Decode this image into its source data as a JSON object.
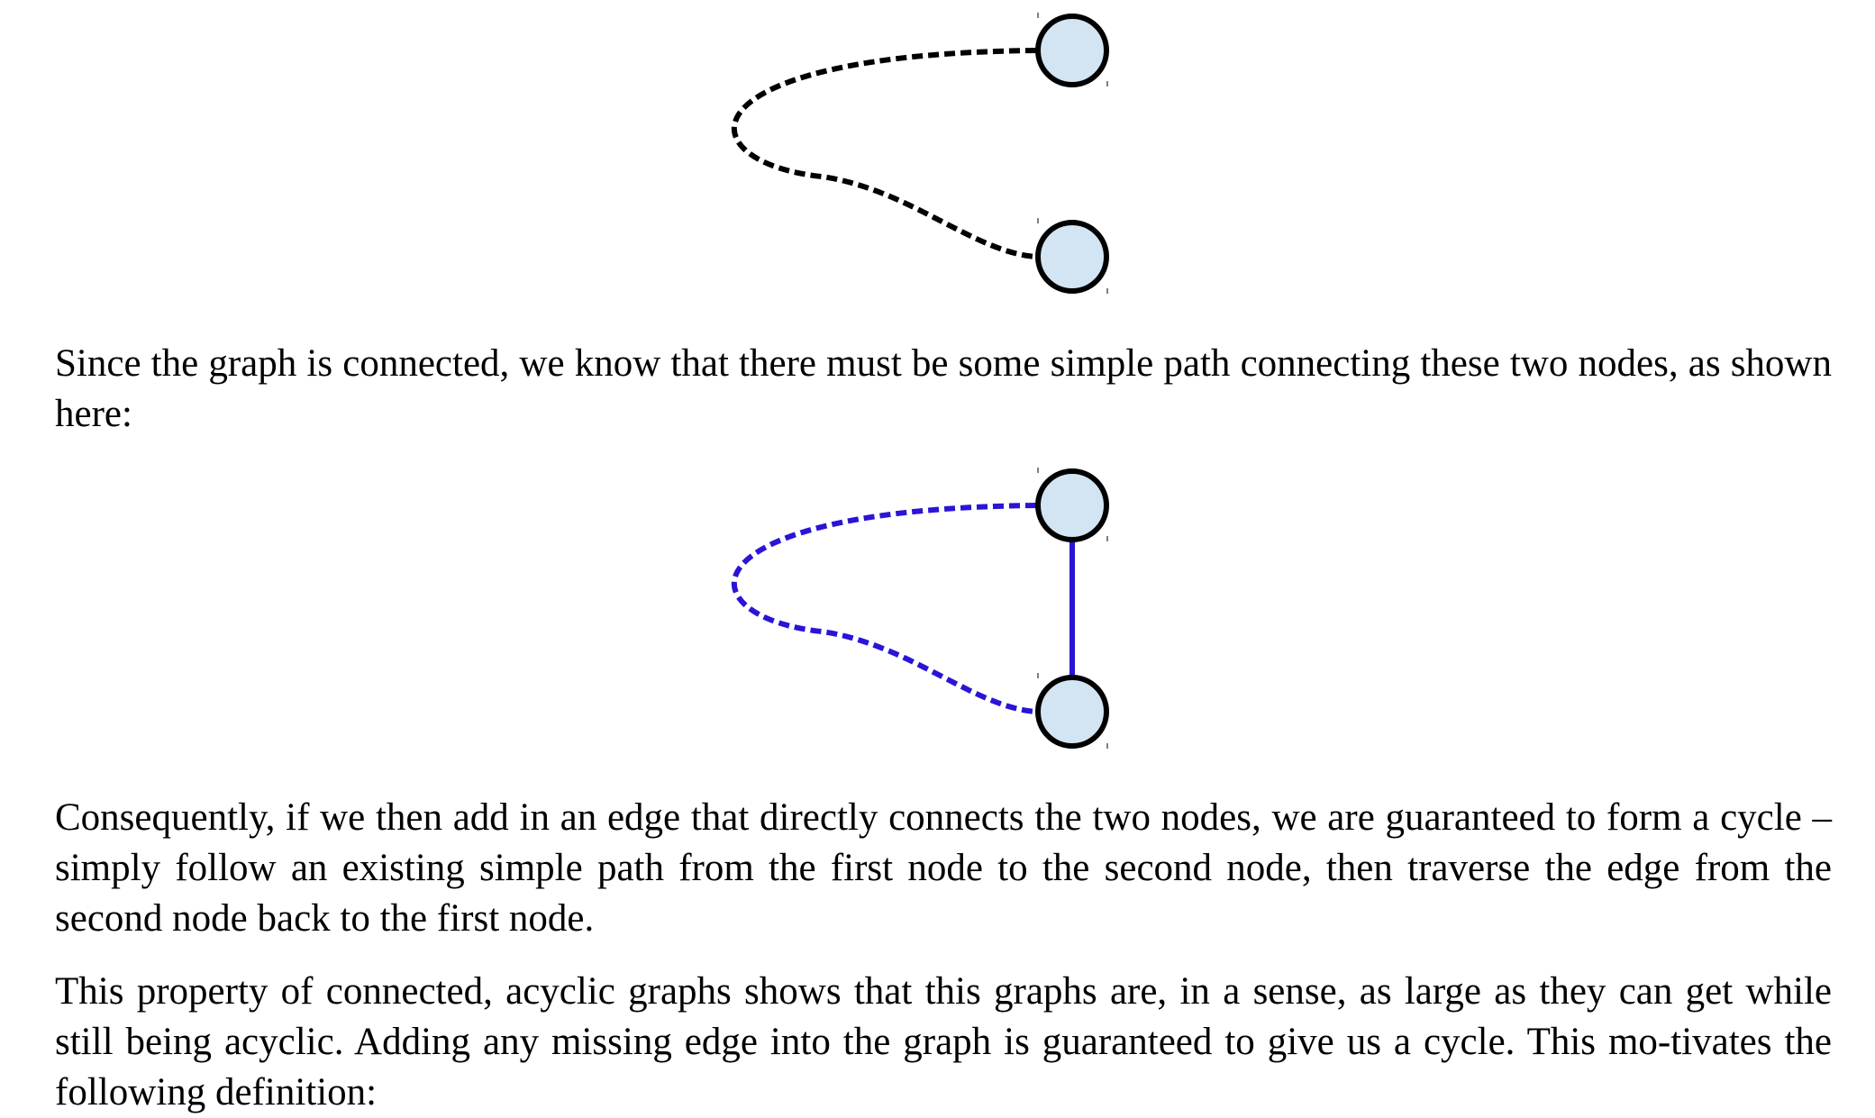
{
  "figures": [
    {
      "id": "figure-path-only",
      "edge_color": "#000000",
      "node_fill": "#d3e5f3",
      "node_stroke": "#000000",
      "dashed_path": true,
      "direct_edge": false
    },
    {
      "id": "figure-path-plus-edge",
      "edge_color": "#2a14d6",
      "node_fill": "#d3e5f3",
      "node_stroke": "#000000",
      "dashed_path": true,
      "direct_edge": true
    }
  ],
  "paragraphs": {
    "p1": "Since the graph is connected, we know that there must be some simple path connecting these two nodes, as shown here:",
    "p2": "Consequently, if we then add in an edge that directly connects the two nodes, we are guaranteed to form a cycle – simply follow an existing simple path from the first node to the second node, then traverse the edge from the second node back to the first node.",
    "p3": "This property of connected, acyclic graphs shows that this graphs are, in a sense, as large as they can get while still being acyclic.  Adding any missing edge into the graph is guaranteed to give us a cycle.  This mo-tivates the following definition:"
  }
}
